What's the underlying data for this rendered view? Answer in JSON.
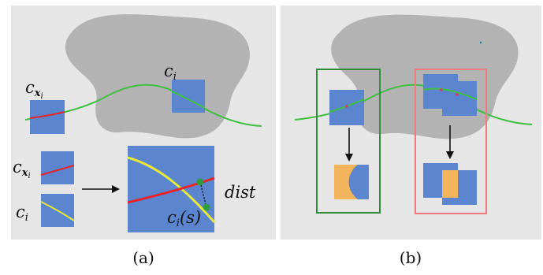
{
  "panels": {
    "a": {
      "caption": "(a)",
      "labels": {
        "c_x_i_top": "c",
        "c_x_i_sub": "x",
        "c_x_i_subsub": "i",
        "c_i_top": "c",
        "c_i_top_sub": "i",
        "c_x_i_small": "c",
        "c_x_i_small_sub": "x",
        "c_x_i_small_subsub": "i",
        "c_i_small": "c",
        "c_i_small_sub": "i",
        "ci_s_main": "c",
        "ci_s_sub": "i",
        "ci_s_arg": "(s)",
        "dist": "dist"
      }
    },
    "b": {
      "caption": "(b)"
    }
  },
  "colors": {
    "panel_bg": "#e6e6e6",
    "blob": "#b3b3b3",
    "patch": "#5b86cf",
    "curve_green": "#3fbf3f",
    "curve_red": "#e8242b",
    "curve_yellow": "#e8e83a",
    "overlap_orange": "#f2b45c",
    "box_green": "#2e8b3a",
    "box_red": "#ef7a7a"
  }
}
